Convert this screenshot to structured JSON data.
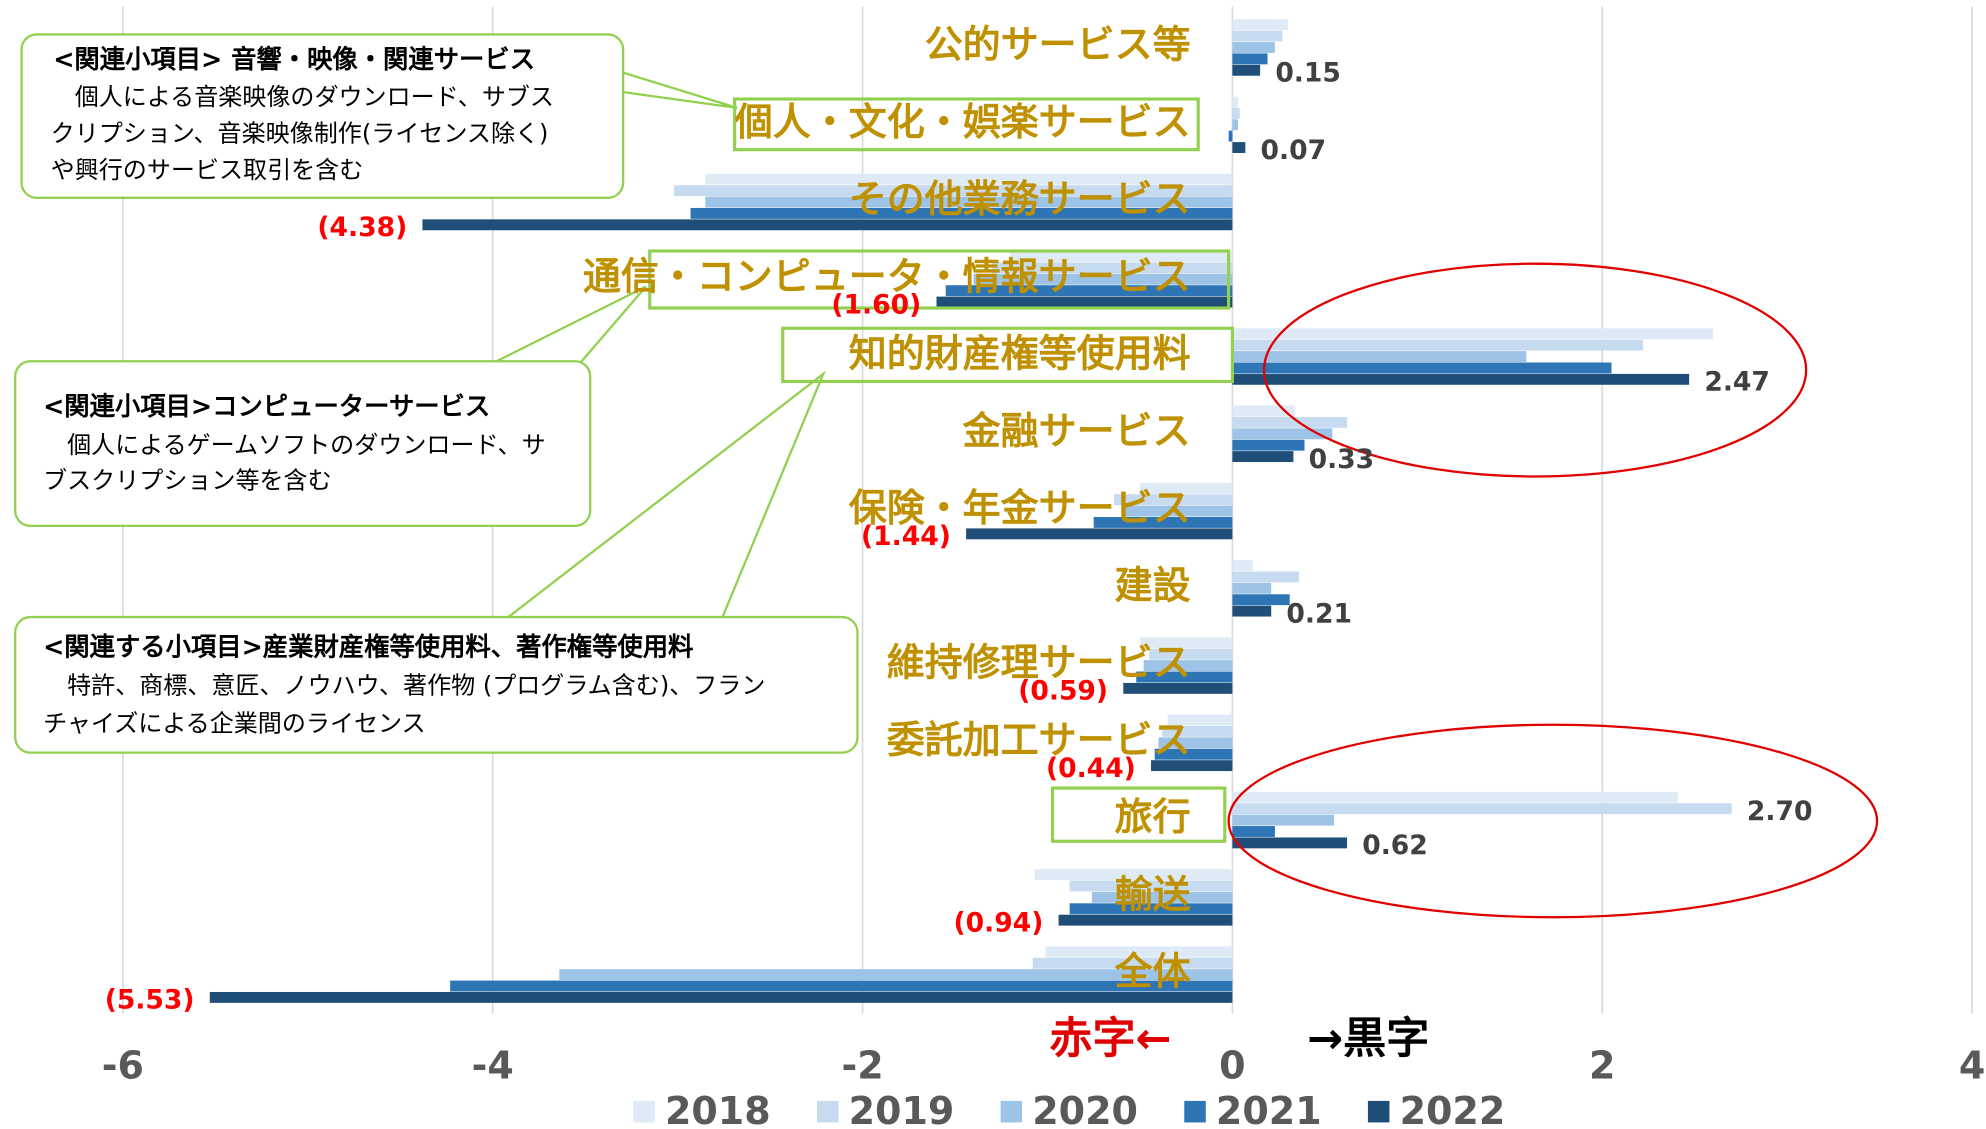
{
  "chart_data": {
    "type": "hbar",
    "categories": [
      "公的サービス等",
      "個人・文化・娯楽サービス",
      "その他業務サービス",
      "通信・コンピュータ・情報サービス",
      "知的財産権等使用料",
      "金融サービス",
      "保険・年金サービス",
      "建設",
      "維持修理サービス",
      "委託加工サービス",
      "旅行",
      "輸送",
      "全体"
    ],
    "series": [
      {
        "name": "2018",
        "color": "#deebf7",
        "values": [
          0.3,
          0.03,
          -2.85,
          -1.2,
          2.6,
          0.34,
          -0.5,
          0.11,
          -0.5,
          -0.35,
          2.41,
          -1.07,
          -1.01
        ]
      },
      {
        "name": "2019",
        "color": "#c6dbef",
        "values": [
          0.27,
          0.04,
          -3.02,
          -1.3,
          2.22,
          0.62,
          -0.64,
          0.36,
          -0.45,
          -0.38,
          2.7,
          -0.88,
          -1.08
        ],
        "value_labels": [
          null,
          null,
          null,
          null,
          null,
          null,
          null,
          null,
          null,
          null,
          "2.70",
          null,
          null
        ]
      },
      {
        "name": "2020",
        "color": "#9dc3e6",
        "values": [
          0.23,
          0.03,
          -2.85,
          -1.4,
          1.59,
          0.54,
          -0.6,
          0.21,
          -0.48,
          -0.4,
          0.55,
          -0.76,
          -3.64
        ]
      },
      {
        "name": "2021",
        "color": "#2e75b6",
        "values": [
          0.19,
          -0.02,
          -2.93,
          -1.55,
          2.05,
          0.39,
          -0.75,
          0.31,
          -0.52,
          -0.42,
          0.23,
          -0.88,
          -4.23
        ]
      },
      {
        "name": "2022",
        "color": "#1f4e79",
        "values": [
          0.15,
          0.07,
          -4.38,
          -1.6,
          2.47,
          0.33,
          -1.44,
          0.21,
          -0.59,
          -0.44,
          0.62,
          -0.94,
          -5.53
        ],
        "value_labels": [
          "0.15",
          "0.07",
          "(4.38)",
          "(1.60)",
          "2.47",
          "0.33",
          "(1.44)",
          "0.21",
          "(0.59)",
          "(0.44)",
          "0.62",
          "(0.94)",
          "(5.53)"
        ]
      }
    ],
    "xlim": [
      -6,
      4
    ],
    "xticks": [
      -6,
      -4,
      -2,
      0,
      2,
      4
    ],
    "grid": true,
    "deficit_label": "赤字←",
    "surplus_label": "→黒字",
    "callouts": [
      {
        "title": "<関連小項目> 音響・映像・関連サービス",
        "lines": [
          "　個人による音楽映像のダウンロード、サブス",
          "クリプション、音楽映像制作(ライセンス除く)",
          "や興行のサービス取引を含む"
        ]
      },
      {
        "title": "<関連小項目>コンピューターサービス",
        "lines": [
          "　個人によるゲームソフトのダウンロード、サ",
          "ブスクリプション等を含む"
        ]
      },
      {
        "title": "<関連する小項目>産業財産権等使用料、著作権等使用料",
        "lines": [
          "　特許、商標、意匠、ノウハウ、著作物 (プログラム含む)、フラン",
          "チャイズによる企業間のライセンス"
        ]
      }
    ]
  }
}
